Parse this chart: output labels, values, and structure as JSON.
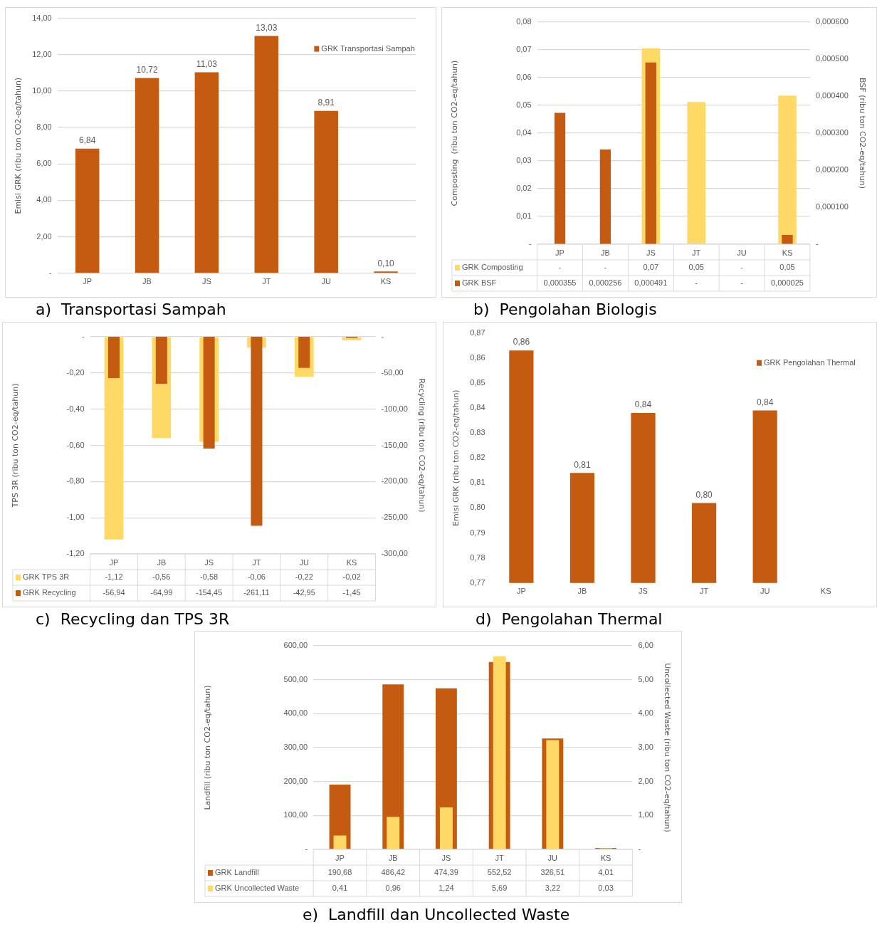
{
  "chart_data": [
    {
      "type": "bar",
      "title": "a)  Transportasi Sampah",
      "categories": [
        "JP",
        "JB",
        "JS",
        "JT",
        "JU",
        "KS"
      ],
      "series": [
        {
          "name": "GRK Transportasi Sampah",
          "color": "#c55a11",
          "values": [
            6.84,
            10.72,
            11.03,
            13.03,
            8.91,
            0.1
          ],
          "value_labels": [
            "6,84",
            "10,72",
            "11,03",
            "13,03",
            "8,91",
            "0,10"
          ]
        }
      ],
      "ylabel": "Emisi GRK (ribu ton CO2-eq/tahun)",
      "ylim": [
        0,
        14
      ],
      "yticks": [
        {
          "value": 0,
          "label": "-"
        },
        {
          "value": 2,
          "label": "2,00"
        },
        {
          "value": 4,
          "label": "4,00"
        },
        {
          "value": 6,
          "label": "6,00"
        },
        {
          "value": 8,
          "label": "8,00"
        },
        {
          "value": 10,
          "label": "10,00"
        },
        {
          "value": 12,
          "label": "12,00"
        },
        {
          "value": 14,
          "label": "14,00"
        }
      ],
      "grid": "y",
      "legend": "top right"
    },
    {
      "type": "bar",
      "title": "b)  Pengolahan Biologis",
      "categories": [
        "JP",
        "JB",
        "JS",
        "JT",
        "JU",
        "KS"
      ],
      "series": [
        {
          "name": "GRK Composting",
          "color": "#ffd966",
          "values": [
            null,
            null,
            0.0705,
            0.0512,
            null,
            0.0535
          ],
          "value_labels": [
            "-",
            "-",
            "0,07",
            "0,05",
            "-",
            "0,05"
          ]
        },
        {
          "name": "GRK BSF",
          "color": "#c55a11",
          "axis": "y2",
          "values": [
            0.000355,
            0.000256,
            0.000491,
            null,
            null,
            2.5e-05
          ],
          "value_labels": [
            "0,000355",
            "0,000256",
            "0,000491",
            "-",
            "-",
            "0,000025"
          ]
        }
      ],
      "ylabel": "Composting  (ribu ton CO2-eq/tahun)",
      "y2label": "BSF (ribu ton CO2-eq/tahun)",
      "ylim": [
        0,
        0.08
      ],
      "yticks": [
        {
          "value": 0,
          "label": "-"
        },
        {
          "value": 0.01,
          "label": "0,01"
        },
        {
          "value": 0.02,
          "label": "0,02"
        },
        {
          "value": 0.03,
          "label": "0,03"
        },
        {
          "value": 0.04,
          "label": "0,04"
        },
        {
          "value": 0.05,
          "label": "0,05"
        },
        {
          "value": 0.06,
          "label": "0,06"
        },
        {
          "value": 0.07,
          "label": "0,07"
        },
        {
          "value": 0.08,
          "label": "0,08"
        }
      ],
      "y2lim": [
        0,
        0.0006
      ],
      "y2ticks": [
        {
          "value": 0,
          "label": "-"
        },
        {
          "value": 0.0001,
          "label": "0,000100"
        },
        {
          "value": 0.0002,
          "label": "0,000200"
        },
        {
          "value": 0.0003,
          "label": "0,000300"
        },
        {
          "value": 0.0004,
          "label": "0,000400"
        },
        {
          "value": 0.0005,
          "label": "0,000500"
        },
        {
          "value": 0.0006,
          "label": "0,000600"
        }
      ],
      "grid": "y",
      "legend": "bottom left"
    },
    {
      "type": "bar",
      "title": "c)  Recycling dan TPS 3R",
      "categories": [
        "JP",
        "JB",
        "JS",
        "JT",
        "JU",
        "KS"
      ],
      "series": [
        {
          "name": "GRK TPS 3R",
          "color": "#ffd966",
          "values": [
            -1.12,
            -0.56,
            -0.58,
            -0.06,
            -0.22,
            -0.02
          ],
          "value_labels": [
            "-1,12",
            "-0,56",
            "-0,58",
            "-0,06",
            "-0,22",
            "-0,02"
          ]
        },
        {
          "name": "GRK Recycling",
          "color": "#c55a11",
          "axis": "y2",
          "values": [
            -56.94,
            -64.99,
            -154.45,
            -261.11,
            -42.95,
            -1.45
          ],
          "value_labels": [
            "-56,94",
            "-64,99",
            "-154,45",
            "-261,11",
            "-42,95",
            "-1,45"
          ]
        }
      ],
      "ylabel": "TPS 3R (ribu ton CO2-eq/tahun)",
      "y2label": "Recycling (ribu ton CO2-eq/tahun)",
      "ylim": [
        -1.2,
        0
      ],
      "yticks": [
        {
          "value": -1.2,
          "label": "-1,20"
        },
        {
          "value": -1,
          "label": "-1,00"
        },
        {
          "value": -0.8,
          "label": "-0,80"
        },
        {
          "value": -0.6,
          "label": "-0,60"
        },
        {
          "value": -0.4,
          "label": "-0,40"
        },
        {
          "value": -0.2,
          "label": "-0,20"
        },
        {
          "value": 0,
          "label": "-"
        }
      ],
      "y2lim": [
        -300,
        0
      ],
      "y2ticks": [
        {
          "value": -300,
          "label": "-300,00"
        },
        {
          "value": -250,
          "label": "-250,00"
        },
        {
          "value": -200,
          "label": "-200,00"
        },
        {
          "value": -150,
          "label": "-150,00"
        },
        {
          "value": -100,
          "label": "-100,00"
        },
        {
          "value": -50,
          "label": "-50,00"
        },
        {
          "value": 0,
          "label": "-"
        }
      ],
      "grid": "y",
      "legend": "bottom left"
    },
    {
      "type": "bar",
      "title": "d)  Pengolahan Thermal",
      "categories": [
        "JP",
        "JB",
        "JS",
        "JT",
        "JU",
        "KS"
      ],
      "series": [
        {
          "name": "GRK Pengolahan Thermal",
          "color": "#c55a11",
          "values": [
            0.863,
            0.814,
            0.838,
            0.802,
            0.839,
            null
          ],
          "value_labels": [
            "0,86",
            "0,81",
            "0,84",
            "0,80",
            "0,84",
            null
          ]
        }
      ],
      "ylabel": "Emisi GRK (ribu ton CO2-eq/tahun)",
      "ylim": [
        0.77,
        0.87
      ],
      "yticks": [
        {
          "value": 0.77,
          "label": "0,77"
        },
        {
          "value": 0.78,
          "label": "0,78"
        },
        {
          "value": 0.79,
          "label": "0,79"
        },
        {
          "value": 0.8,
          "label": "0,80"
        },
        {
          "value": 0.81,
          "label": "0,81"
        },
        {
          "value": 0.82,
          "label": "0,82"
        },
        {
          "value": 0.83,
          "label": "0,83"
        },
        {
          "value": 0.84,
          "label": "0,84"
        },
        {
          "value": 0.85,
          "label": "0,85"
        },
        {
          "value": 0.86,
          "label": "0,86"
        },
        {
          "value": 0.87,
          "label": "0,87"
        }
      ],
      "grid": false,
      "legend": "top right"
    },
    {
      "type": "bar",
      "title": "e)  Landfill dan Uncollected Waste",
      "categories": [
        "JP",
        "JB",
        "JS",
        "JT",
        "JU",
        "KS"
      ],
      "series": [
        {
          "name": "GRK Landfill",
          "color": "#c55a11",
          "values": [
            190.68,
            486.42,
            474.39,
            552.52,
            326.51,
            4.01
          ],
          "value_labels": [
            "190,68",
            "486,42",
            "474,39",
            "552,52",
            "326,51",
            "4,01"
          ]
        },
        {
          "name": "GRK Uncollected Waste",
          "color": "#ffd966",
          "axis": "y2",
          "values": [
            0.41,
            0.96,
            1.24,
            5.69,
            3.22,
            0.03
          ],
          "value_labels": [
            "0,41",
            "0,96",
            "1,24",
            "5,69",
            "3,22",
            "0,03"
          ]
        }
      ],
      "ylabel": "Landfill (ribu ton CO2-eq/tahun)",
      "y2label": "Uncollected Waste (ribu ton CO2-eq/tahun)",
      "ylim": [
        0,
        600
      ],
      "yticks": [
        {
          "value": 0,
          "label": "-"
        },
        {
          "value": 100,
          "label": "100,00"
        },
        {
          "value": 200,
          "label": "200,00"
        },
        {
          "value": 300,
          "label": "300,00"
        },
        {
          "value": 400,
          "label": "400,00"
        },
        {
          "value": 500,
          "label": "500,00"
        },
        {
          "value": 600,
          "label": "600,00"
        }
      ],
      "y2lim": [
        0,
        6
      ],
      "y2ticks": [
        {
          "value": 0,
          "label": "-"
        },
        {
          "value": 1,
          "label": "1,00"
        },
        {
          "value": 2,
          "label": "2,00"
        },
        {
          "value": 3,
          "label": "3,00"
        },
        {
          "value": 4,
          "label": "4,00"
        },
        {
          "value": 5,
          "label": "5,00"
        },
        {
          "value": 6,
          "label": "6,00"
        }
      ],
      "grid": "y",
      "legend": "bottom left"
    }
  ]
}
